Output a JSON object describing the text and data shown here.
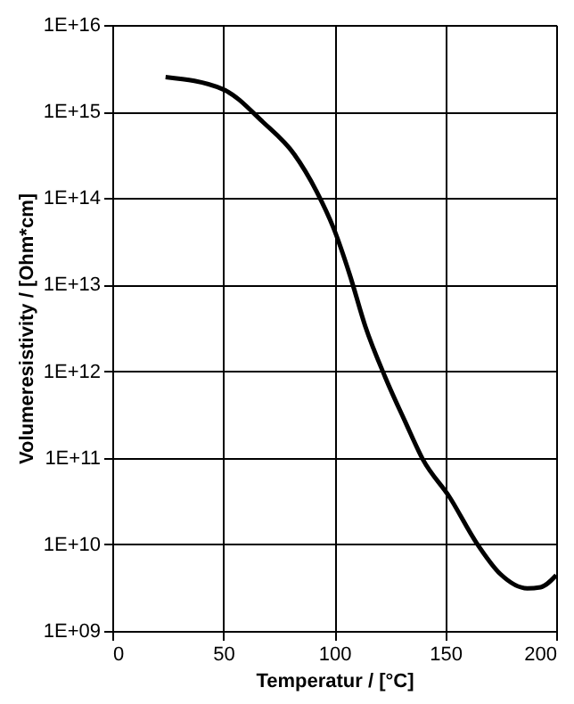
{
  "chart_data": {
    "type": "line",
    "xlabel": "Temperatur / [°C]",
    "ylabel": "Volumeresistivity / [Ohm*cm]",
    "x": [
      24,
      50,
      68,
      82,
      92,
      100,
      107,
      114,
      123,
      132,
      140,
      152,
      164,
      175,
      187,
      193,
      200
    ],
    "series": [
      {
        "color": "#000000",
        "values": [
          2500000000000000.0,
          1800000000000000.0,
          750000000000000.0,
          320000000000000.0,
          120000000000000.0,
          43000000000000.0,
          13000000000000.0,
          3300000000000.0,
          850000000000.0,
          260000000000.0,
          95000000000.0,
          35000000000.0,
          10500000000.0,
          4500000000.0,
          3100000000.0,
          3200000000.0,
          4400000000.0
        ]
      }
    ],
    "xlim": [
      0,
      200
    ],
    "xticks": [
      0,
      50,
      100,
      150,
      200
    ],
    "ylim": [
      1000000000.0,
      1e+16
    ],
    "log": "y",
    "yticks": [
      {
        "value": 1000000000.0,
        "label": "1E+09"
      },
      {
        "value": 10000000000.0,
        "label": "1E+10"
      },
      {
        "value": 100000000000.0,
        "label": "1E+11"
      },
      {
        "value": 1000000000000.0,
        "label": "1E+12"
      },
      {
        "value": 10000000000000.0,
        "label": "1E+13"
      },
      {
        "value": 100000000000000.0,
        "label": "1E+14"
      },
      {
        "value": 1000000000000000.0,
        "label": "1E+15"
      },
      {
        "value": 1e+16,
        "label": "1E+16"
      }
    ],
    "grid": true,
    "marker": "none",
    "line_style": "solid"
  }
}
